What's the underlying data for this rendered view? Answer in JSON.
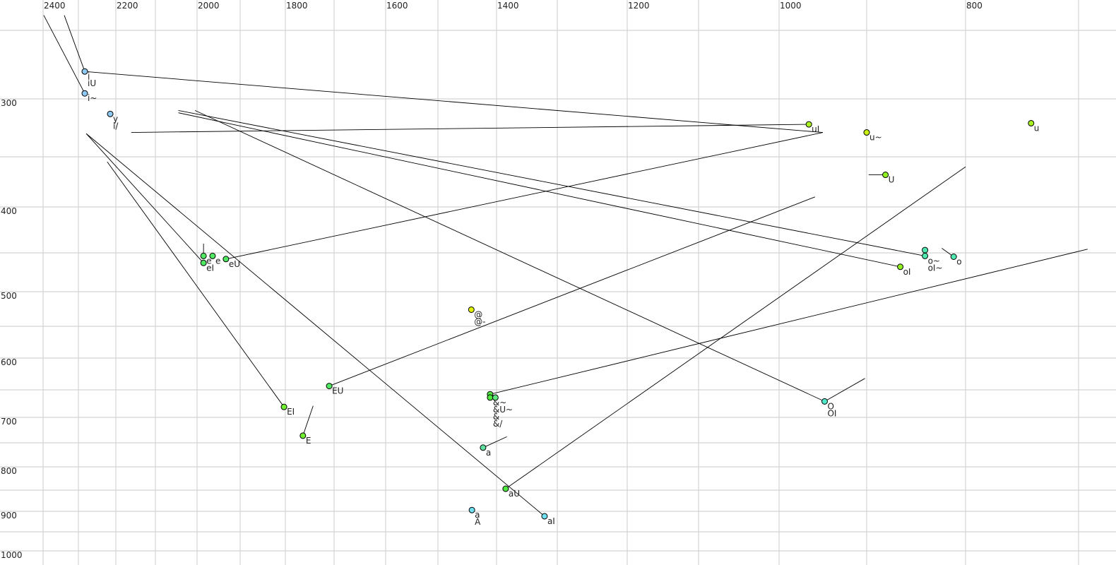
{
  "chart_data": {
    "type": "scatter",
    "title": "",
    "xlabel": "",
    "ylabel": "",
    "x_axis": {
      "reversed": true,
      "position": "top",
      "tick_labels": [
        2400,
        2200,
        2000,
        1800,
        1600,
        1400,
        1200,
        1000,
        800
      ],
      "grid_step": 100,
      "scale": "nonlinear"
    },
    "y_axis": {
      "reversed": false,
      "tick_labels": [
        300,
        400,
        500,
        600,
        700,
        800,
        900,
        1000
      ],
      "grid_step": 50,
      "scale": "nonlinear"
    },
    "grid": true,
    "points": [
      {
        "labels": [
          "i",
          "iU"
        ],
        "F2": 2283,
        "F1": 280,
        "color": "#8ec8f0"
      },
      {
        "labels": [
          "i~"
        ],
        "F2": 2283,
        "F1": 296,
        "color": "#8ec8f0"
      },
      {
        "labels": [
          "y",
          "i/"
        ],
        "F2": 2215,
        "F1": 313,
        "color": "#8ec8f0"
      },
      {
        "labels": [
          "e"
        ],
        "F2": 1985,
        "F1": 454,
        "color": "#50e860"
      },
      {
        "labels": [
          "e"
        ],
        "F2": 1964,
        "F1": 454,
        "color": "#50e860"
      },
      {
        "labels": [
          "eI"
        ],
        "F2": 1985,
        "F1": 463,
        "color": "#50e860"
      },
      {
        "labels": [
          "eU"
        ],
        "F2": 1933,
        "F1": 458,
        "color": "#50e860"
      },
      {
        "labels": [
          "@",
          "@-"
        ],
        "F2": 1443,
        "F1": 526,
        "color": "#e0f000"
      },
      {
        "labels": [
          "EU"
        ],
        "F2": 1710,
        "F1": 644,
        "color": "#50e860"
      },
      {
        "labels": [
          "EI"
        ],
        "F2": 1803,
        "F1": 681,
        "color": "#70f030"
      },
      {
        "labels": [
          "E"
        ],
        "F2": 1764,
        "F1": 736,
        "color": "#70f030"
      },
      {
        "labels": [],
        "F2": 1411,
        "F1": 658,
        "color": "#50e840"
      },
      {
        "labels": [
          "&~",
          "&U~",
          "&",
          "&/"
        ],
        "F2": 1411,
        "F1": 664,
        "color": "#50e840"
      },
      {
        "labels": [],
        "F2": 1402,
        "F1": 664,
        "color": "#60e880"
      },
      {
        "labels": [
          "a"
        ],
        "F2": 1423,
        "F1": 760,
        "color": "#60e0a0",
        "faded": true
      },
      {
        "labels": [
          "aU"
        ],
        "F2": 1385,
        "F1": 847,
        "color": "#50e840"
      },
      {
        "labels": [
          "a",
          "A"
        ],
        "F2": 1442,
        "F1": 897,
        "color": "#70e0f0"
      },
      {
        "labels": [
          "aI"
        ],
        "F2": 1321,
        "F1": 912,
        "color": "#70e0f0"
      },
      {
        "labels": [
          "uI"
        ],
        "F2": 966,
        "F1": 322,
        "color": "#a8f020"
      },
      {
        "labels": [
          "u~"
        ],
        "F2": 900,
        "F1": 329,
        "color": "#c8f010"
      },
      {
        "labels": [
          "U"
        ],
        "F2": 881,
        "F1": 368,
        "color": "#90f020"
      },
      {
        "labels": [
          "u"
        ],
        "F2": 742,
        "F1": 321,
        "color": "#a8f020"
      },
      {
        "labels": [],
        "F2": 841,
        "F1": 447,
        "color": "#50e8b0"
      },
      {
        "labels": [
          "o~",
          "oI~"
        ],
        "F2": 841,
        "F1": 454,
        "color": "#50e8b0"
      },
      {
        "labels": [
          "o"
        ],
        "F2": 812,
        "F1": 455,
        "color": "#50e8b0"
      },
      {
        "labels": [
          "oI"
        ],
        "F2": 866,
        "F1": 468,
        "color": "#90f020"
      },
      {
        "labels": [
          "O",
          "OI"
        ],
        "F2": 948,
        "F1": 671,
        "color": "#50e8c8"
      }
    ],
    "trajectories": [
      {
        "from": [
          2398,
          239
        ],
        "to": [
          2283,
          296
        ]
      },
      {
        "from": [
          2340,
          239
        ],
        "to": [
          2283,
          280
        ]
      },
      {
        "from": [
          2283,
          280
        ],
        "to": [
          950,
          329
        ]
      },
      {
        "from": [
          2161,
          329
        ],
        "to": [
          966,
          322
        ]
      },
      {
        "from": [
          2045,
          310
        ],
        "to": [
          841,
          454
        ]
      },
      {
        "from": [
          2045,
          312
        ],
        "to": [
          866,
          468
        ]
      },
      {
        "from": [
          2005,
          310
        ],
        "to": [
          948,
          671
        ]
      },
      {
        "from": [
          2279,
          330
        ],
        "to": [
          1321,
          912
        ]
      },
      {
        "from": [
          2279,
          330
        ],
        "to": [
          1985,
          463
        ]
      },
      {
        "from": [
          2223,
          355
        ],
        "to": [
          1803,
          681
        ]
      },
      {
        "from": [
          1985,
          440
        ],
        "to": [
          1985,
          454
        ]
      },
      {
        "from": [
          1933,
          458
        ],
        "to": [
          950,
          329
        ]
      },
      {
        "from": [
          1710,
          644
        ],
        "to": [
          959,
          390
        ]
      },
      {
        "from": [
          1743,
          679
        ],
        "to": [
          1764,
          736
        ]
      },
      {
        "from": [
          1411,
          658
        ],
        "to": [
          692,
          446
        ]
      },
      {
        "from": [
          1423,
          760
        ],
        "to": [
          1383,
          738
        ],
        "faded": true
      },
      {
        "from": [
          1385,
          847
        ],
        "to": [
          800,
          360
        ]
      },
      {
        "from": [
          948,
          671
        ],
        "to": [
          902,
          632
        ]
      },
      {
        "from": [
          898,
          368
        ],
        "to": [
          881,
          368
        ]
      },
      {
        "from": [
          824,
          445
        ],
        "to": [
          812,
          455
        ]
      }
    ]
  }
}
